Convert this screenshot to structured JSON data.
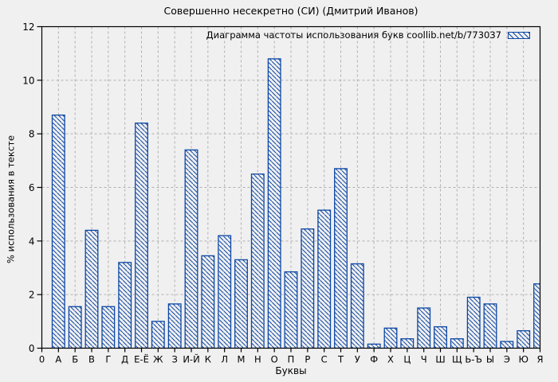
{
  "figure": {
    "background": "#f0f0f0",
    "bar_color": "#0d47a5",
    "grid_color": "#b0b0b0",
    "axis_color": "#000000"
  },
  "chart_data": {
    "type": "bar",
    "title": "Совершенно несекретно (СИ) (Дмитрий Иванов)",
    "legend_label": "Диаграмма частоты использования букв coollib.net/b/773037",
    "legend_position": "top-right",
    "xlabel": "Буквы",
    "ylabel": "% использования в тексте",
    "origin_label": "0",
    "ylim": [
      0,
      12
    ],
    "y_ticks": [
      0,
      2,
      4,
      6,
      8,
      10,
      12
    ],
    "grid": true,
    "bar_style": "blue-diagonal-hatch",
    "categories": [
      "А",
      "Б",
      "В",
      "Г",
      "Д",
      "Е-Ё",
      "Ж",
      "З",
      "И-Й",
      "К",
      "Л",
      "М",
      "Н",
      "О",
      "П",
      "Р",
      "С",
      "Т",
      "У",
      "Ф",
      "Х",
      "Ц",
      "Ч",
      "Ш",
      "Щ",
      "Ь-Ъ",
      "Ы",
      "Э",
      "Ю",
      "Я"
    ],
    "values": [
      8.7,
      1.55,
      4.4,
      1.55,
      3.2,
      8.4,
      1.0,
      1.65,
      7.4,
      3.45,
      4.2,
      3.3,
      6.5,
      10.8,
      2.85,
      4.45,
      5.15,
      6.7,
      3.15,
      0.15,
      0.75,
      0.35,
      1.5,
      0.8,
      0.35,
      1.9,
      1.65,
      0.25,
      0.65,
      2.4
    ]
  }
}
